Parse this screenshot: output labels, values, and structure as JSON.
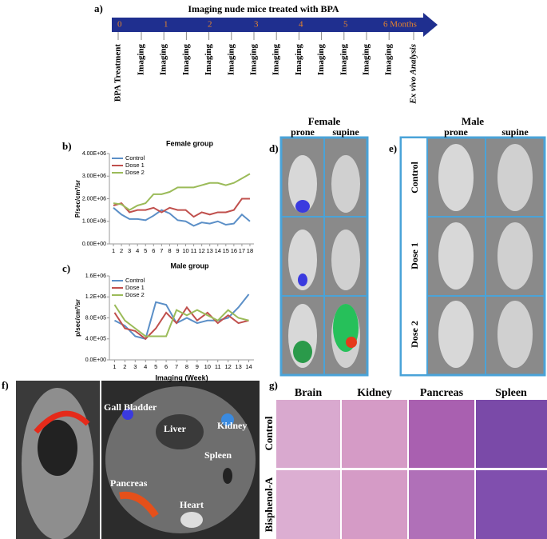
{
  "timeline": {
    "panel": "a)",
    "title": "Imaging nude mice treated with BPA",
    "ticks": [
      "0",
      "1",
      "2",
      "3",
      "4",
      "5",
      "6 Months"
    ],
    "events": [
      "BPA Treatment",
      "Imaging",
      "Imaging",
      "Imaging",
      "Imaging",
      "Imaging",
      "Imaging",
      "Imaging",
      "Imaging",
      "Imaging",
      "Imaging",
      "Imaging",
      "Imaging",
      "Ex vivo Analysis"
    ]
  },
  "chart_data": [
    {
      "type": "line",
      "panel": "b)",
      "title": "Female group",
      "y_label": "P/sec/cm²/sr",
      "x": [
        1,
        2,
        3,
        4,
        5,
        6,
        7,
        8,
        9,
        10,
        11,
        12,
        13,
        14,
        15,
        16,
        17,
        18
      ],
      "xlim": [
        0.5,
        18.5
      ],
      "xticks": [
        1,
        2,
        3,
        4,
        5,
        6,
        7,
        8,
        9,
        10,
        11,
        12,
        13,
        14,
        15,
        16,
        17,
        18
      ],
      "ylim": [
        0,
        4000000
      ],
      "yticks": [
        {
          "value": 0,
          "label": "0.00E+00"
        },
        {
          "value": 1000000,
          "label": "1.00E+06"
        },
        {
          "value": 2000000,
          "label": "2.00E+06"
        },
        {
          "value": 3000000,
          "label": "3.00E+06"
        },
        {
          "value": 4000000,
          "label": "4.00E+06"
        }
      ],
      "legend": "top-left",
      "series": [
        {
          "name": "Control",
          "color": "#5b8fc7",
          "values": [
            1600000,
            1300000,
            1100000,
            1100000,
            1050000,
            1250000,
            1500000,
            1350000,
            1050000,
            1000000,
            800000,
            950000,
            900000,
            1000000,
            850000,
            900000,
            1300000,
            1000000
          ]
        },
        {
          "name": "Dose 1",
          "color": "#c0504d",
          "values": [
            1700000,
            1800000,
            1400000,
            1500000,
            1500000,
            1600000,
            1400000,
            1600000,
            1500000,
            1500000,
            1200000,
            1400000,
            1300000,
            1400000,
            1400000,
            1500000,
            2000000,
            2000000
          ]
        },
        {
          "name": "Dose 2",
          "color": "#9bbb59",
          "values": [
            1800000,
            1750000,
            1500000,
            1700000,
            1800000,
            2200000,
            2200000,
            2300000,
            2500000,
            2500000,
            2500000,
            2600000,
            2700000,
            2700000,
            2600000,
            2700000,
            2900000,
            3100000
          ]
        }
      ]
    },
    {
      "type": "line",
      "panel": "c)",
      "title": "Male group",
      "y_label": "p/sec/cm²/sr",
      "x_label": "Imaging (Week)",
      "x": [
        1,
        2,
        3,
        4,
        5,
        6,
        7,
        8,
        9,
        10,
        11,
        12,
        13,
        14
      ],
      "xlim": [
        0.5,
        14.5
      ],
      "xticks": [
        1,
        2,
        3,
        4,
        5,
        6,
        7,
        8,
        9,
        10,
        11,
        12,
        13,
        14
      ],
      "ylim": [
        0,
        1600000
      ],
      "yticks": [
        {
          "value": 0,
          "label": "0.0E+00"
        },
        {
          "value": 400000,
          "label": "4.0E+05"
        },
        {
          "value": 800000,
          "label": "8.0E+05"
        },
        {
          "value": 1200000,
          "label": "1.2E+06"
        },
        {
          "value": 1600000,
          "label": "1.6E+06"
        }
      ],
      "legend": "top-left",
      "series": [
        {
          "name": "Control",
          "color": "#5b8fc7",
          "values": [
            750000,
            650000,
            450000,
            400000,
            1100000,
            1050000,
            700000,
            800000,
            700000,
            750000,
            750000,
            800000,
            1000000,
            1250000
          ]
        },
        {
          "name": "Dose 1",
          "color": "#c0504d",
          "values": [
            900000,
            600000,
            550000,
            400000,
            600000,
            900000,
            700000,
            1000000,
            750000,
            900000,
            700000,
            850000,
            700000,
            750000
          ]
        },
        {
          "name": "Dose 2",
          "color": "#9bbb59",
          "values": [
            1050000,
            750000,
            600000,
            450000,
            450000,
            450000,
            950000,
            850000,
            950000,
            850000,
            750000,
            950000,
            800000,
            750000
          ]
        }
      ]
    }
  ],
  "female_imaging": {
    "panel": "d)",
    "title": "Female",
    "columns": [
      "prone",
      "supine"
    ]
  },
  "male_imaging": {
    "panel": "e)",
    "title": "Male",
    "columns": [
      "prone",
      "supine"
    ],
    "rows": [
      "Control",
      "Dose 1",
      "Dose 2"
    ]
  },
  "ex_vivo": {
    "panel": "f)",
    "organs": [
      "Gall Bladder",
      "Liver",
      "Kidney",
      "Spleen",
      "Pancreas",
      "Heart"
    ]
  },
  "histology": {
    "panel": "g)",
    "columns": [
      "Brain",
      "Kidney",
      "Pancreas",
      "Spleen"
    ],
    "rows": [
      "Control",
      "Bisphenol-A"
    ]
  }
}
